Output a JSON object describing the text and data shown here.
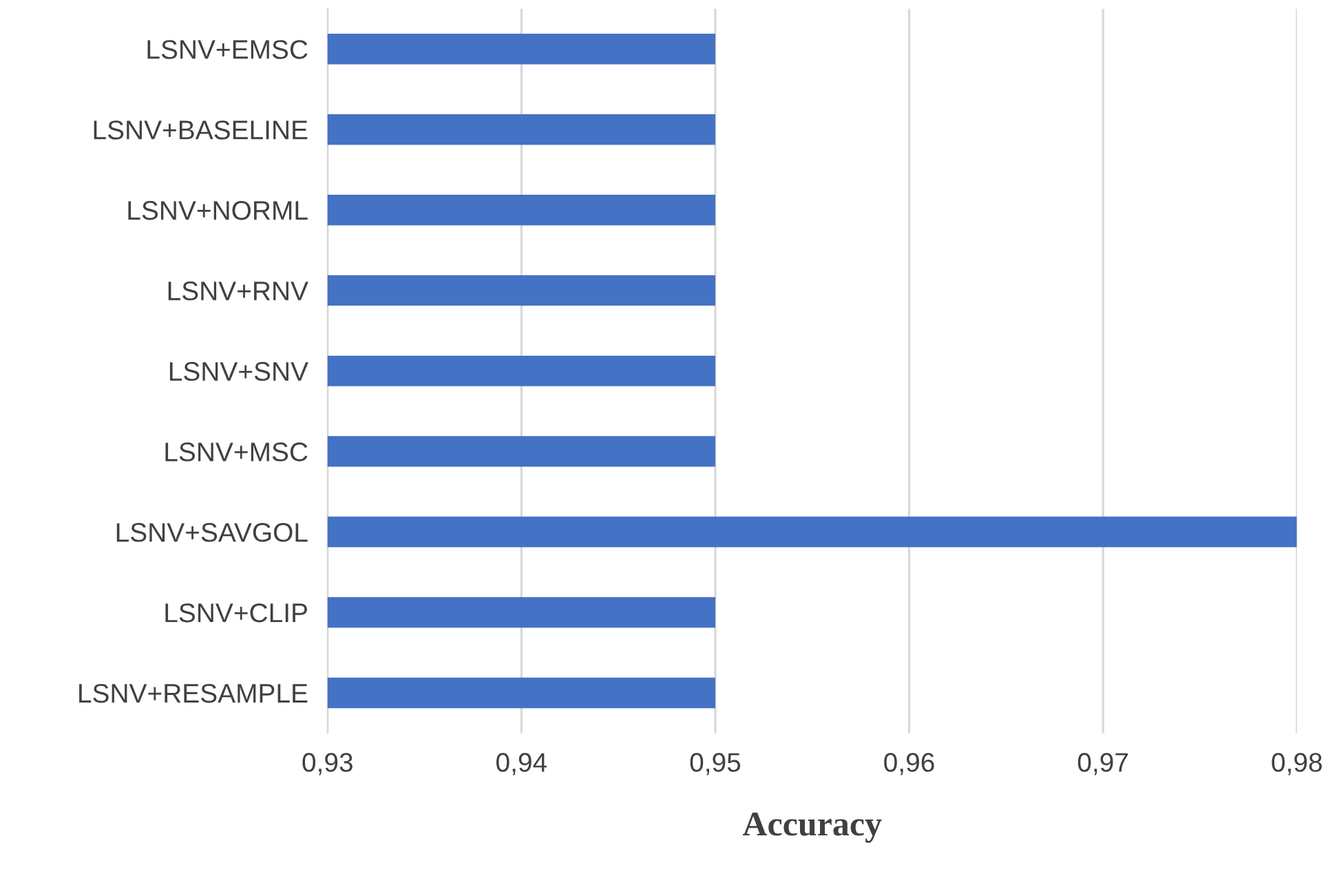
{
  "chart_data": {
    "type": "bar",
    "orientation": "horizontal",
    "xlabel": "Accuracy",
    "categories": [
      "LSNV+EMSC",
      "LSNV+BASELINE",
      "LSNV+NORML",
      "LSNV+RNV",
      "LSNV+SNV",
      "LSNV+MSC",
      "LSNV+SAVGOL",
      "LSNV+CLIP",
      "LSNV+RESAMPLE"
    ],
    "values": [
      0.95,
      0.95,
      0.95,
      0.95,
      0.95,
      0.95,
      0.98,
      0.95,
      0.95
    ],
    "color": "#4472c4",
    "xlim": [
      0.93,
      0.98
    ],
    "xticks": [
      {
        "value": 0.93,
        "label": "0,93"
      },
      {
        "value": 0.94,
        "label": "0,94"
      },
      {
        "value": 0.95,
        "label": "0,95"
      },
      {
        "value": 0.96,
        "label": "0,96"
      },
      {
        "value": 0.97,
        "label": "0,97"
      },
      {
        "value": 0.98,
        "label": "0,98"
      }
    ],
    "grid": "x"
  }
}
